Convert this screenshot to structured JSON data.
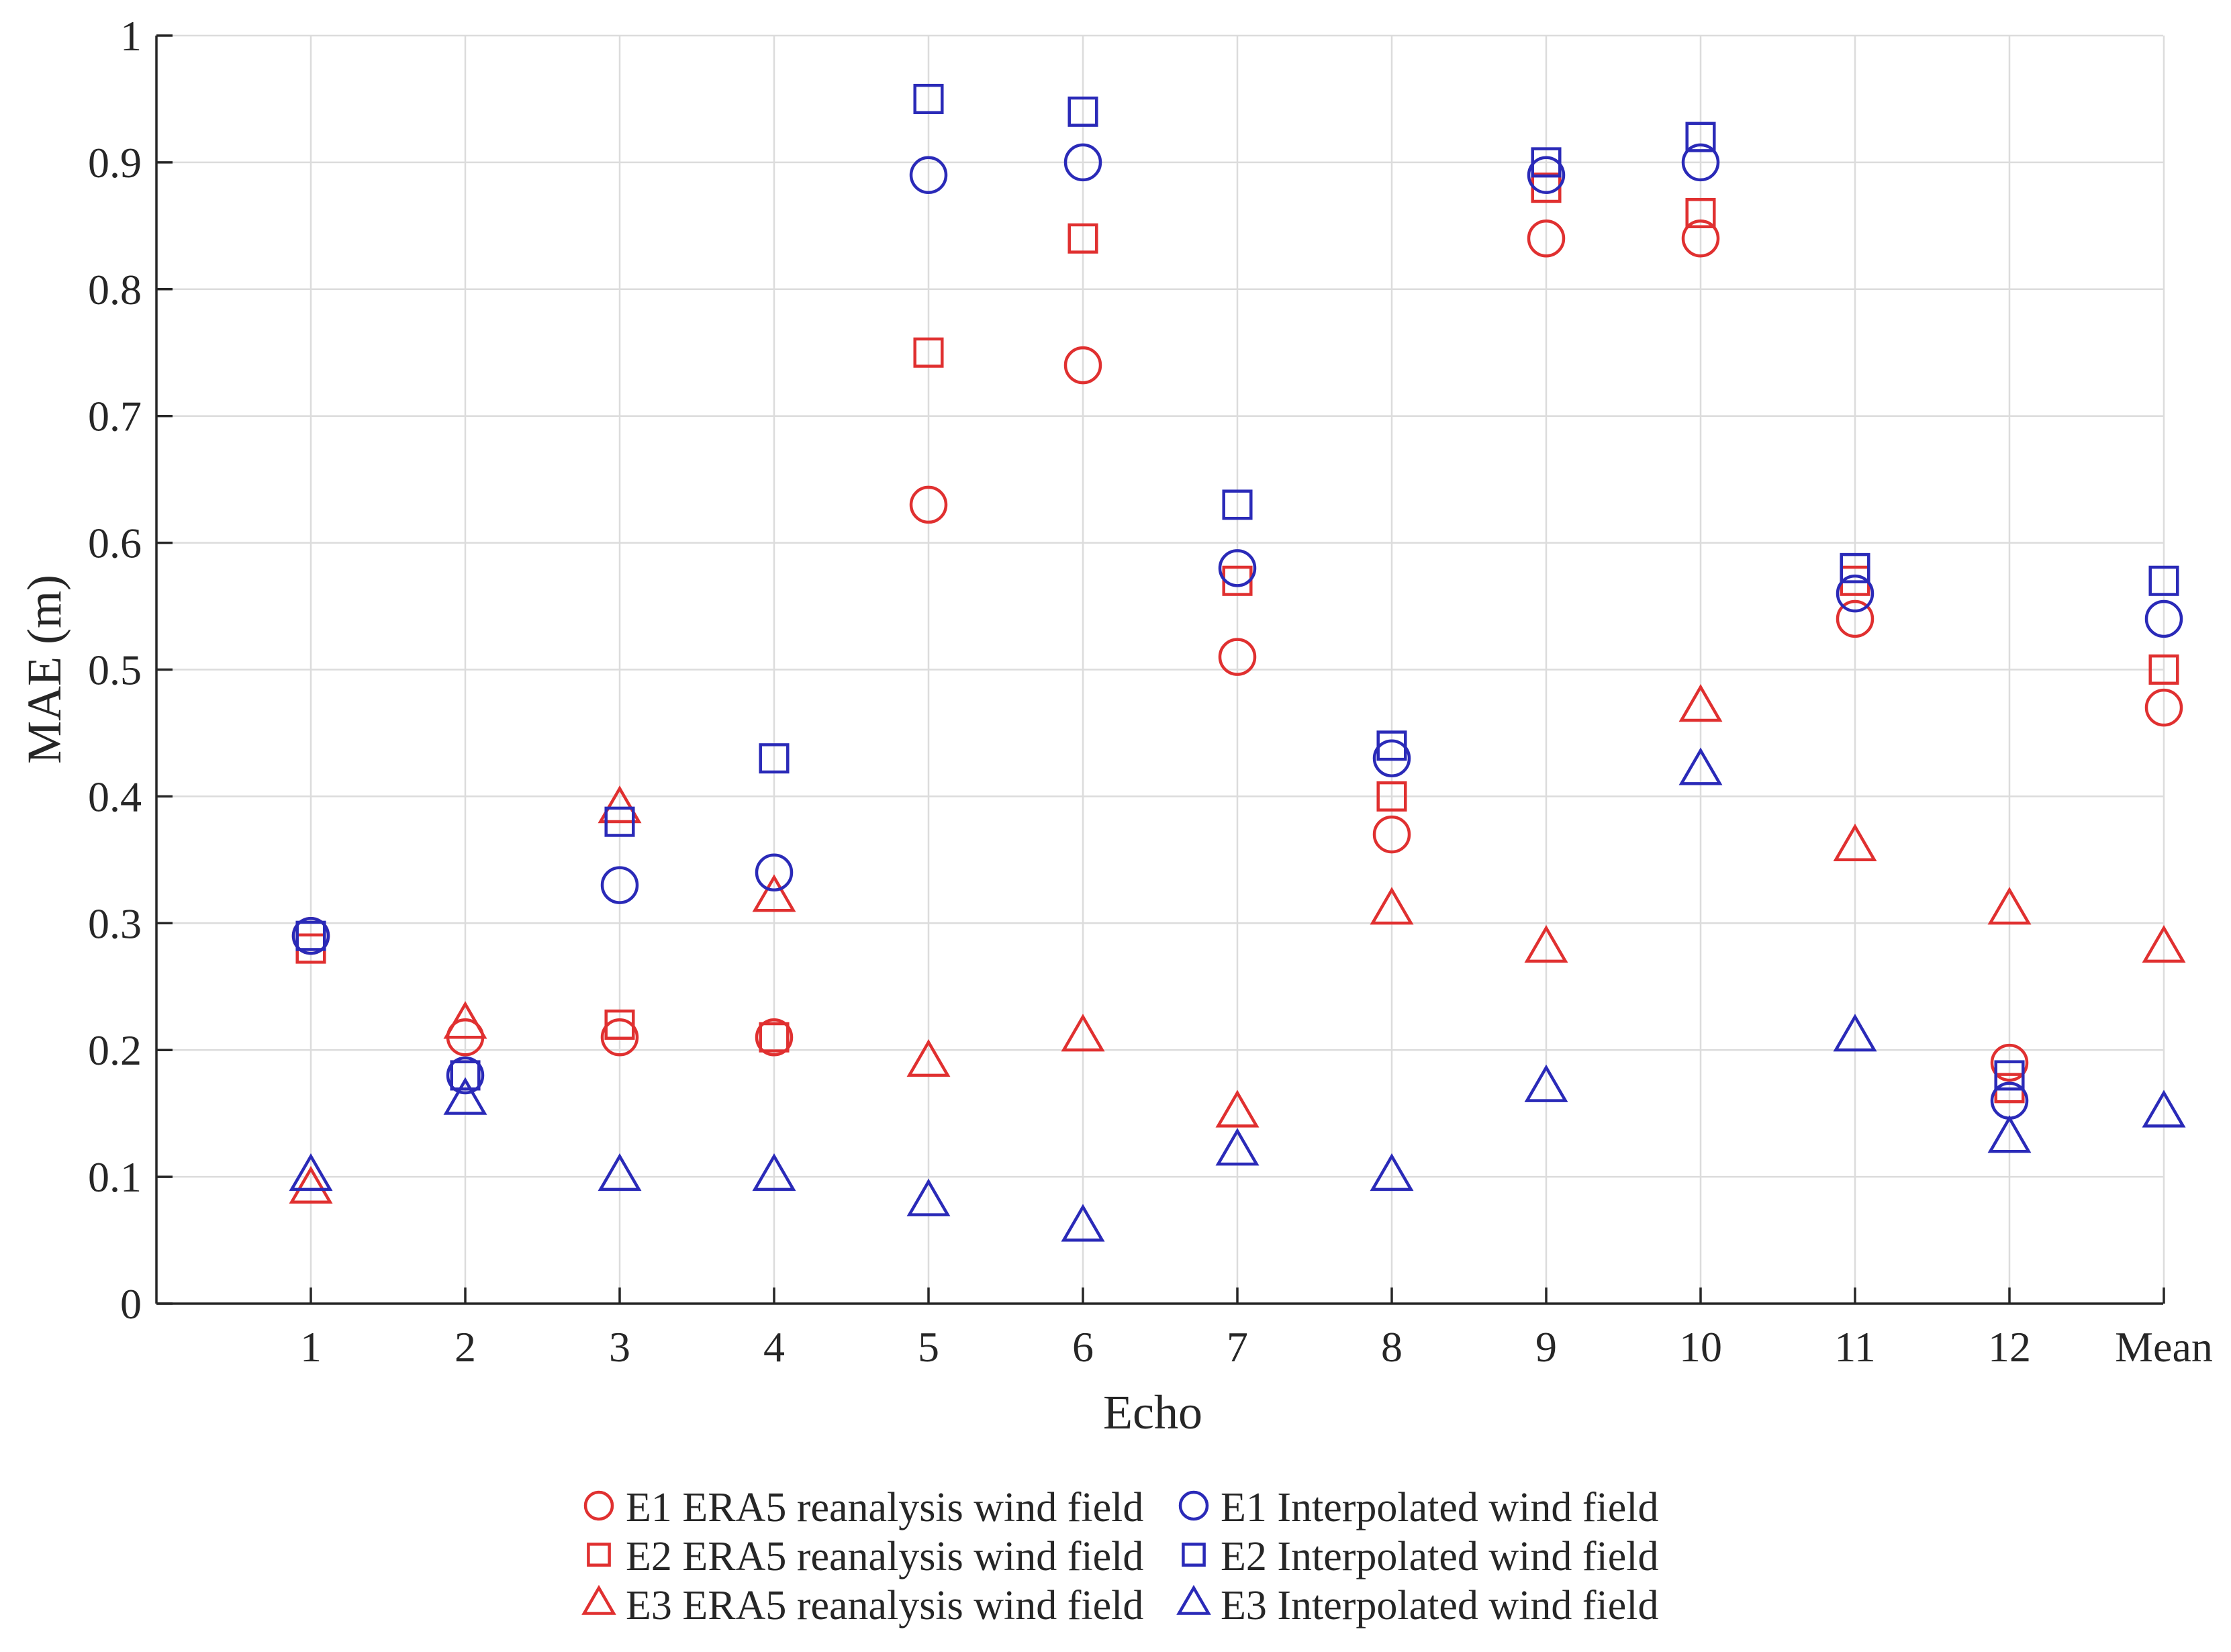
{
  "chart_data": {
    "type": "scatter",
    "title": "",
    "xlabel": "Echo",
    "ylabel": "MAE (m)",
    "categories": [
      "1",
      "2",
      "3",
      "4",
      "5",
      "6",
      "7",
      "8",
      "9",
      "10",
      "11",
      "12",
      "Mean"
    ],
    "ylim": [
      0,
      1
    ],
    "yticks": [
      0,
      0.1,
      0.2,
      0.3,
      0.4,
      0.5,
      0.6,
      0.7,
      0.8,
      0.9,
      1
    ],
    "ytick_labels": [
      "0",
      "0.1",
      "0.2",
      "0.3",
      "0.4",
      "0.5",
      "0.6",
      "0.7",
      "0.8",
      "0.9",
      "1"
    ],
    "grid": true,
    "legend_position": "bottom-center",
    "series": [
      {
        "name": "E1 ERA5 reanalysis wind field",
        "marker": "circle",
        "color": "#e03030",
        "values": [
          0.29,
          0.21,
          0.21,
          0.21,
          0.63,
          0.74,
          0.51,
          0.37,
          0.84,
          0.84,
          0.54,
          0.19,
          0.47
        ]
      },
      {
        "name": "E2 ERA5 reanalysis wind field",
        "marker": "square",
        "color": "#e03030",
        "values": [
          0.28,
          0.18,
          0.22,
          0.21,
          0.75,
          0.84,
          0.57,
          0.4,
          0.88,
          0.86,
          0.57,
          0.17,
          0.5
        ]
      },
      {
        "name": "E3 ERA5 reanalysis wind field",
        "marker": "triangle",
        "color": "#e03030",
        "values": [
          0.09,
          0.22,
          0.39,
          0.32,
          0.19,
          0.21,
          0.15,
          0.31,
          0.28,
          0.47,
          0.36,
          0.31,
          0.28
        ]
      },
      {
        "name": "E1 Interpolated wind field",
        "marker": "circle",
        "color": "#2a2ab8",
        "values": [
          0.29,
          0.18,
          0.33,
          0.34,
          0.89,
          0.9,
          0.58,
          0.43,
          0.89,
          0.9,
          0.56,
          0.16,
          0.54
        ]
      },
      {
        "name": "E2 Interpolated wind field",
        "marker": "square",
        "color": "#2a2ab8",
        "values": [
          0.29,
          0.18,
          0.38,
          0.43,
          0.95,
          0.94,
          0.63,
          0.44,
          0.9,
          0.92,
          0.58,
          0.18,
          0.57
        ]
      },
      {
        "name": "E3 Interpolated wind field",
        "marker": "triangle",
        "color": "#2a2ab8",
        "values": [
          0.1,
          0.16,
          0.1,
          0.1,
          0.08,
          0.06,
          0.12,
          0.1,
          0.17,
          0.42,
          0.21,
          0.13,
          0.15
        ]
      }
    ]
  }
}
